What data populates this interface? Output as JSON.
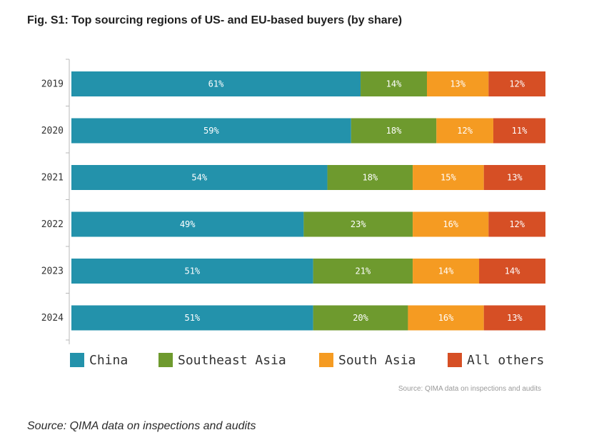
{
  "header": {
    "title": "Fig. S1: Top sourcing regions of US- and EU-based buyers (by share)"
  },
  "chart_data": {
    "type": "bar",
    "orientation": "horizontal",
    "stacked": true,
    "categories": [
      "2019",
      "2020",
      "2021",
      "2022",
      "2023",
      "2024"
    ],
    "series": [
      {
        "name": "China",
        "color": "#2392ab",
        "values": [
          61,
          59,
          54,
          49,
          51,
          51
        ],
        "labels": [
          "61%",
          "59%",
          "54%",
          "49%",
          "51%",
          "51%"
        ]
      },
      {
        "name": "Southeast Asia",
        "color": "#6e9a2e",
        "values": [
          14,
          18,
          18,
          23,
          21,
          20
        ],
        "labels": [
          "14%",
          "18%",
          "18%",
          "23%",
          "21%",
          "20%"
        ]
      },
      {
        "name": "South Asia",
        "color": "#f59b22",
        "values": [
          13,
          12,
          15,
          16,
          14,
          16
        ],
        "labels": [
          "13%",
          "12%",
          "15%",
          "16%",
          "14%",
          "16%"
        ]
      },
      {
        "name": "All others",
        "color": "#d64f25",
        "values": [
          12,
          11,
          13,
          12,
          14,
          13
        ],
        "labels": [
          "12%",
          "11%",
          "13%",
          "12%",
          "14%",
          "13%"
        ]
      }
    ],
    "xlim": [
      0,
      100
    ],
    "grid": false,
    "legend_position": "bottom",
    "source_note": "Source: QIMA data on inspections and audits"
  },
  "footer": {
    "source": "Source: QIMA data on inspections and audits"
  }
}
